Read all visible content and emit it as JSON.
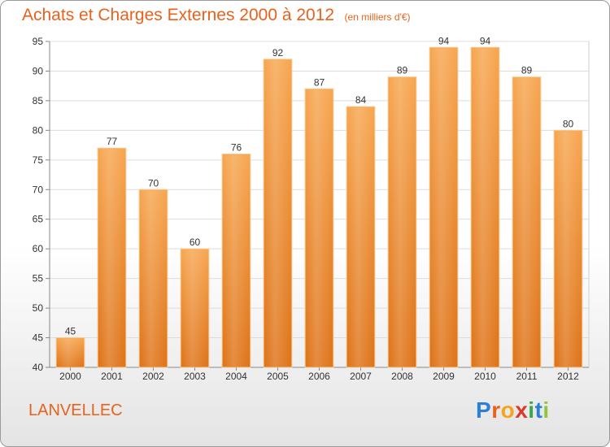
{
  "header": {
    "title": "Achats et Charges Externes 2000 à 2012",
    "unit": "(en milliers d'€)"
  },
  "commune": "LANVELLEC",
  "logo": {
    "text": "Proxiti",
    "letters": [
      "P",
      "r",
      "o",
      "x",
      "i",
      "t",
      "i"
    ],
    "colors": [
      "#2b7fd4",
      "#e8621c",
      "#f2a51d",
      "#d93a2b",
      "#3aa64a",
      "#2b7fd4",
      "#8cc63f"
    ]
  },
  "colors": {
    "bar_light": "#f6a24c",
    "bar_dark": "#e0761a",
    "accent": "#e8621c",
    "grid": "#dcdcdc"
  },
  "chart_data": {
    "type": "bar",
    "title": "Achats et Charges Externes 2000 à 2012",
    "subtitle": "(en milliers d'€)",
    "categories": [
      "2000",
      "2001",
      "2002",
      "2003",
      "2004",
      "2005",
      "2006",
      "2007",
      "2008",
      "2009",
      "2010",
      "2011",
      "2012"
    ],
    "values": [
      45,
      77,
      70,
      60,
      76,
      92,
      87,
      84,
      89,
      94,
      94,
      89,
      80
    ],
    "ylim": [
      40,
      95
    ],
    "yticks": [
      40,
      45,
      50,
      55,
      60,
      65,
      70,
      75,
      80,
      85,
      90,
      95
    ],
    "grid": true
  }
}
